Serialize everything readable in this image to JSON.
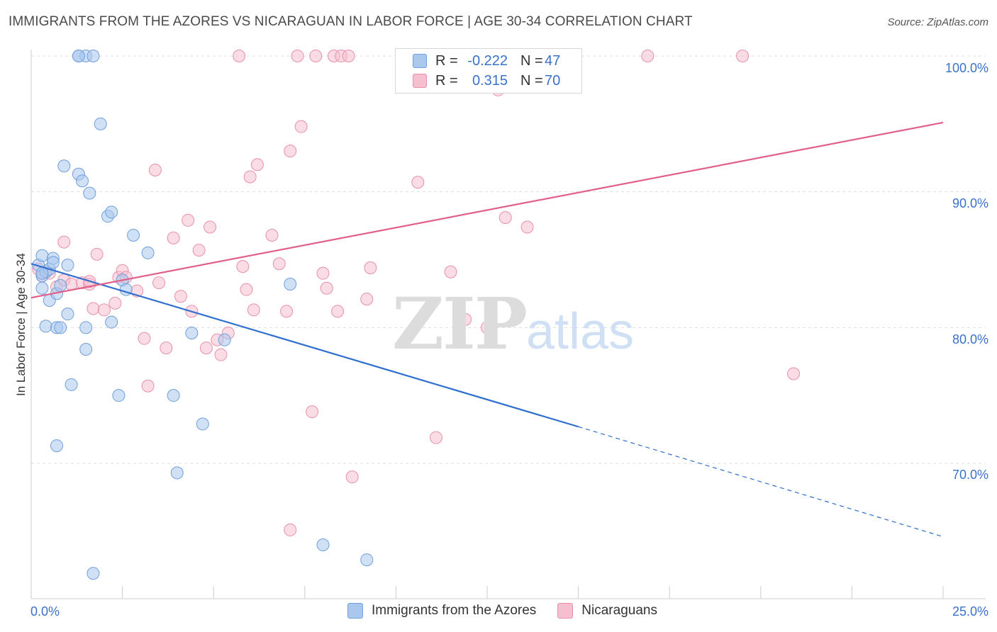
{
  "title": "IMMIGRANTS FROM THE AZORES VS NICARAGUAN IN LABOR FORCE | AGE 30-34 CORRELATION CHART",
  "source": "Source: ZipAtlas.com",
  "watermark": {
    "part1": "ZIP",
    "part2": "atlas"
  },
  "legend": {
    "rows": [
      {
        "r_label": "R =",
        "r_value": "-0.222",
        "n_label": "N =",
        "n_value": "47"
      },
      {
        "r_label": "R =",
        "r_value": "0.315",
        "n_label": "N =",
        "n_value": "70"
      }
    ]
  },
  "bottom_legend": [
    "Immigrants from the Azores",
    "Nicaraguans"
  ],
  "colors": {
    "blue_fill": "#aac8ee",
    "blue_edge": "#6f9fdc",
    "blue_line": "#2f6fce",
    "pink_fill": "#f6bfd0",
    "pink_edge": "#e890ab",
    "pink_line": "#e0608a",
    "tick_text": "#3a72c9",
    "grid": "#dddddd"
  },
  "chart_data": {
    "type": "scatter",
    "xlabel": "",
    "ylabel": "In Labor Force | Age 30-34",
    "xlim": [
      0,
      25
    ],
    "ylim": [
      60,
      101
    ],
    "x_tick_labels": [
      "0.0%",
      "25.0%"
    ],
    "y_tick_values": [
      70,
      80,
      90,
      100
    ],
    "y_tick_labels": [
      "70.0%",
      "80.0%",
      "90.0%",
      "100.0%"
    ],
    "grid": true,
    "series": [
      {
        "name": "Immigrants from the Azores",
        "color": "#6f9fdc",
        "trend": {
          "x0": 0,
          "y0": 84.7,
          "x1": 15,
          "y1": 72.7,
          "dashed_to_x": 25,
          "dashed_to_y": 64.6
        },
        "points": [
          [
            0.2,
            84.6
          ],
          [
            0.3,
            83.8
          ],
          [
            0.3,
            82.9
          ],
          [
            0.4,
            84.1
          ],
          [
            0.3,
            85.3
          ],
          [
            0.5,
            84.3
          ],
          [
            0.5,
            82.0
          ],
          [
            0.4,
            80.1
          ],
          [
            0.6,
            85.1
          ],
          [
            0.6,
            84.8
          ],
          [
            0.7,
            82.5
          ],
          [
            0.7,
            80.0
          ],
          [
            0.8,
            80.0
          ],
          [
            0.8,
            83.1
          ],
          [
            0.9,
            91.9
          ],
          [
            1.0,
            81.0
          ],
          [
            1.0,
            84.6
          ],
          [
            1.1,
            75.8
          ],
          [
            0.7,
            71.3
          ],
          [
            1.3,
            100.0
          ],
          [
            1.5,
            100.0
          ],
          [
            1.7,
            100.0
          ],
          [
            1.3,
            91.3
          ],
          [
            1.4,
            90.8
          ],
          [
            1.6,
            89.9
          ],
          [
            1.5,
            80.0
          ],
          [
            1.5,
            78.4
          ],
          [
            1.9,
            95.0
          ],
          [
            2.1,
            88.2
          ],
          [
            2.2,
            88.5
          ],
          [
            2.2,
            80.4
          ],
          [
            2.4,
            75.0
          ],
          [
            2.5,
            83.5
          ],
          [
            2.6,
            82.8
          ],
          [
            2.8,
            86.8
          ],
          [
            3.2,
            85.5
          ],
          [
            3.9,
            75.0
          ],
          [
            4.0,
            69.3
          ],
          [
            4.4,
            79.6
          ],
          [
            4.7,
            72.9
          ],
          [
            5.3,
            79.1
          ],
          [
            7.1,
            83.2
          ],
          [
            8.0,
            64.0
          ],
          [
            9.2,
            62.9
          ],
          [
            1.7,
            61.9
          ],
          [
            1.3,
            100.0
          ],
          [
            0.3,
            84.0
          ]
        ]
      },
      {
        "name": "Nicaraguans",
        "color": "#e890ab",
        "trend": {
          "x0": 0,
          "y0": 82.2,
          "x1": 25,
          "y1": 95.1
        },
        "points": [
          [
            0.2,
            84.3
          ],
          [
            0.3,
            83.8
          ],
          [
            0.4,
            84.1
          ],
          [
            0.5,
            84.0
          ],
          [
            0.7,
            83.0
          ],
          [
            0.9,
            83.5
          ],
          [
            0.9,
            86.3
          ],
          [
            1.1,
            83.2
          ],
          [
            1.4,
            83.3
          ],
          [
            1.6,
            83.2
          ],
          [
            1.6,
            83.4
          ],
          [
            1.7,
            81.4
          ],
          [
            1.8,
            85.4
          ],
          [
            2.0,
            81.3
          ],
          [
            2.3,
            81.8
          ],
          [
            2.4,
            83.7
          ],
          [
            2.5,
            84.2
          ],
          [
            2.6,
            83.7
          ],
          [
            2.9,
            82.7
          ],
          [
            3.1,
            79.2
          ],
          [
            3.2,
            75.7
          ],
          [
            3.4,
            91.6
          ],
          [
            3.5,
            83.3
          ],
          [
            3.7,
            78.5
          ],
          [
            3.9,
            86.6
          ],
          [
            4.1,
            82.3
          ],
          [
            4.3,
            87.9
          ],
          [
            4.4,
            81.2
          ],
          [
            4.6,
            85.7
          ],
          [
            4.8,
            78.5
          ],
          [
            4.9,
            87.4
          ],
          [
            5.1,
            79.1
          ],
          [
            5.2,
            78.0
          ],
          [
            5.4,
            79.6
          ],
          [
            5.7,
            100.0
          ],
          [
            5.8,
            84.5
          ],
          [
            5.9,
            82.8
          ],
          [
            6.0,
            91.1
          ],
          [
            6.1,
            81.3
          ],
          [
            6.2,
            92.0
          ],
          [
            6.6,
            86.8
          ],
          [
            6.8,
            84.7
          ],
          [
            7.0,
            81.2
          ],
          [
            7.1,
            93.0
          ],
          [
            7.3,
            100.0
          ],
          [
            7.4,
            94.8
          ],
          [
            7.7,
            73.8
          ],
          [
            7.8,
            100.0
          ],
          [
            8.0,
            84.0
          ],
          [
            8.1,
            82.9
          ],
          [
            8.3,
            100.0
          ],
          [
            8.4,
            81.2
          ],
          [
            8.5,
            100.0
          ],
          [
            8.7,
            100.0
          ],
          [
            8.8,
            69.0
          ],
          [
            9.2,
            82.1
          ],
          [
            9.3,
            84.4
          ],
          [
            7.1,
            65.1
          ],
          [
            10.3,
            98.8
          ],
          [
            10.6,
            90.7
          ],
          [
            11.1,
            71.9
          ],
          [
            11.5,
            84.1
          ],
          [
            11.9,
            80.6
          ],
          [
            12.5,
            80.0
          ],
          [
            12.8,
            97.5
          ],
          [
            13.0,
            88.1
          ],
          [
            13.6,
            87.4
          ],
          [
            16.9,
            100.0
          ],
          [
            19.5,
            100.0
          ],
          [
            20.9,
            76.6
          ]
        ]
      }
    ]
  }
}
